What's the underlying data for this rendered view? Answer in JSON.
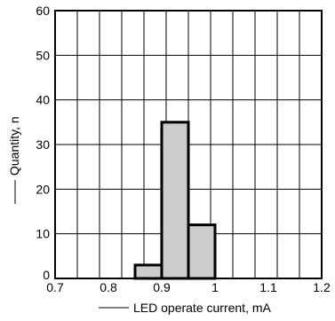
{
  "chart_data": {
    "type": "bar",
    "title": "",
    "xlabel": "LED operate current, mA",
    "ylabel": "Quantity, n",
    "xlim": [
      0.7,
      1.2
    ],
    "ylim": [
      0,
      60
    ],
    "x_ticks": [
      0.7,
      0.8,
      0.9,
      1.0,
      1.1,
      1.2
    ],
    "x_tick_labels": [
      "0.7",
      "0.8",
      "0.9",
      "1",
      "1.1",
      "1.2"
    ],
    "y_ticks": [
      0,
      10,
      20,
      30,
      40,
      50,
      60
    ],
    "y_tick_labels": [
      "0",
      "10",
      "20",
      "30",
      "40",
      "50",
      "60"
    ],
    "grid": true,
    "bins": [
      {
        "x0": 0.85,
        "x1": 0.9,
        "value": 3
      },
      {
        "x0": 0.9,
        "x1": 0.95,
        "value": 35
      },
      {
        "x0": 0.95,
        "x1": 1.0,
        "value": 12
      }
    ],
    "bar_fill": "#cccccc",
    "bar_stroke": "#000000"
  }
}
